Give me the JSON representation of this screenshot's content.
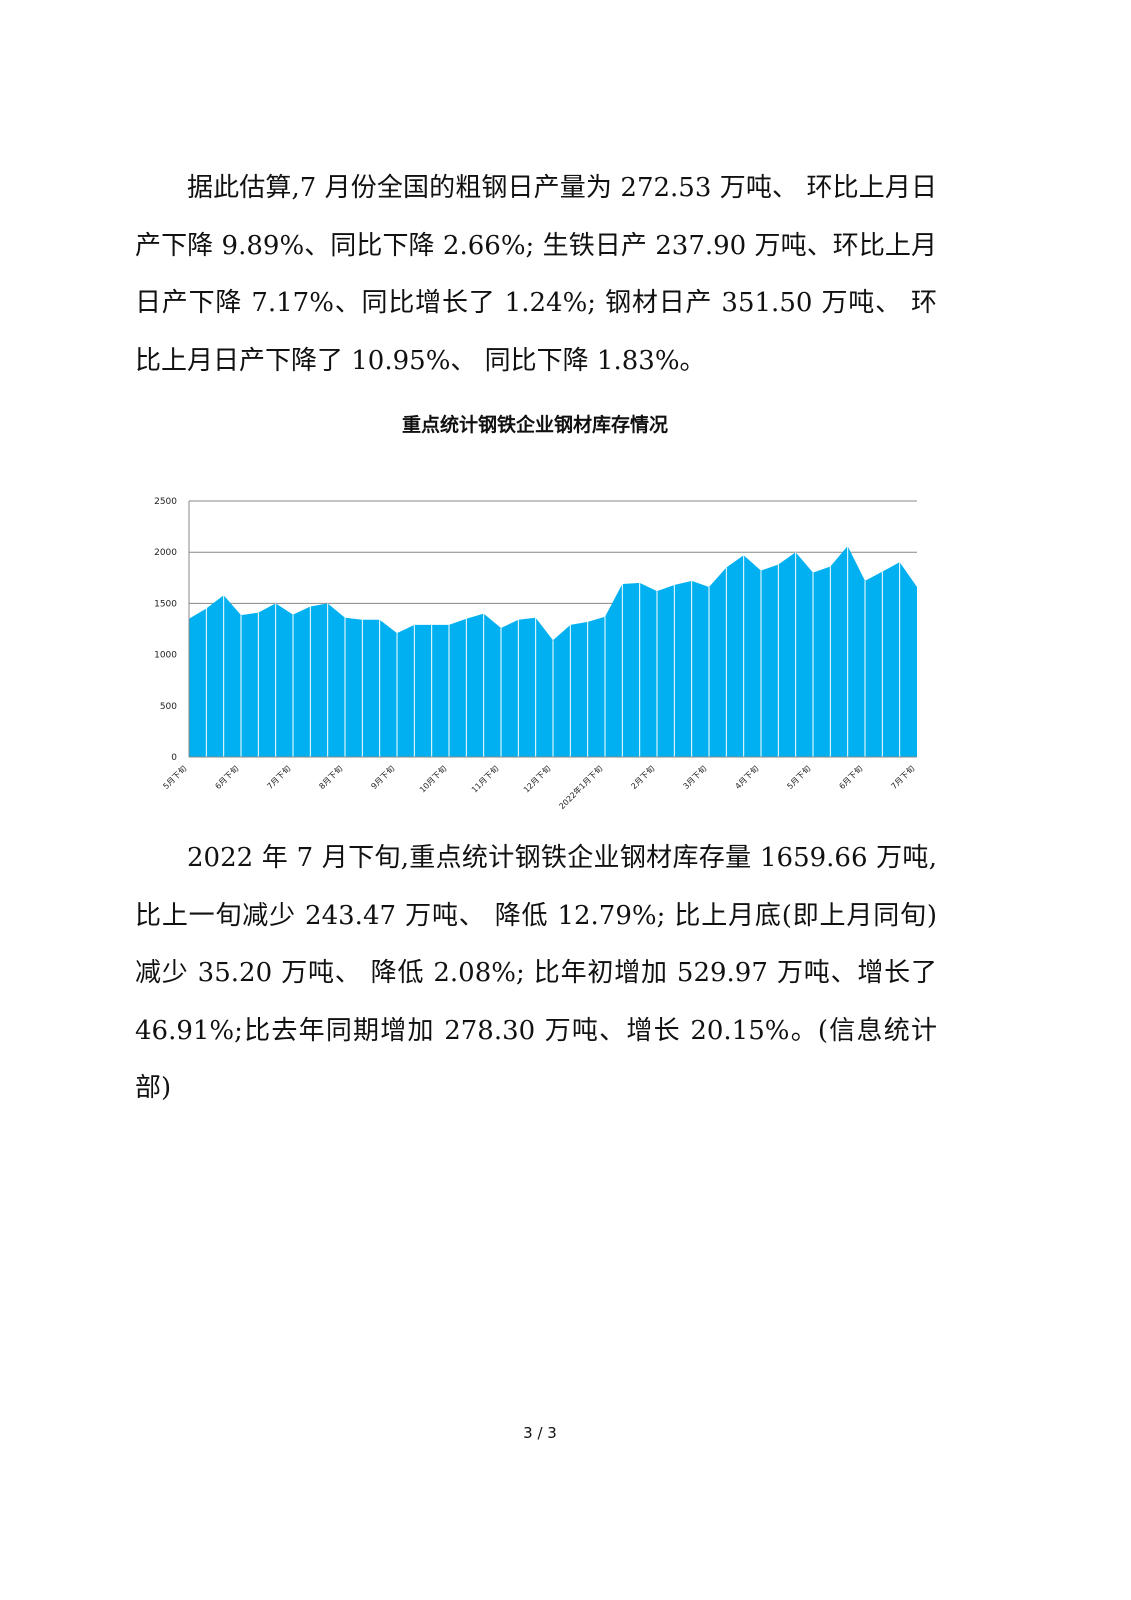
{
  "paragraphs": [
    "据此估算,7 月份全国的粗钢日产量为 272.53 万吨、 环比上月日产下降 9.89%、同比下降 2.66%;  生铁日产 237.90 万吨、环比上月日产下降 7.17%、同比增长了 1.24%;  钢材日产 351.50 万吨、 环比上月日产下降了 10.95%、 同比下降 1.83%。",
    "2022 年 7 月下旬,重点统计钢铁企业钢材库存量 1659.66 万吨,比上一旬减少 243.47 万吨、 降低 12.79%;  比上月底(即上月同旬)减少 35.20 万吨、 降低 2.08%;  比年初增加 529.97 万吨、增长了 46.91%;比去年同期增加 278.30 万吨、增长 20.15%。(信息统计部)"
  ],
  "chart_data": {
    "type": "area",
    "title": "重点统计钢铁企业钢材库存情况",
    "categories": [
      "5月下旬",
      null,
      null,
      "6月下旬",
      null,
      null,
      "7月下旬",
      null,
      null,
      "8月下旬",
      null,
      null,
      "9月下旬",
      null,
      null,
      "10月下旬",
      null,
      null,
      "11月下旬",
      null,
      null,
      "12月下旬",
      null,
      null,
      "2022年1月下旬",
      null,
      null,
      "2月下旬",
      null,
      null,
      "3月下旬",
      null,
      null,
      "4月下旬",
      null,
      null,
      "5月下旬",
      null,
      null,
      "6月下旬",
      null,
      null,
      "7月下旬"
    ],
    "values": [
      1350,
      1450,
      1580,
      1385,
      1410,
      1500,
      1390,
      1470,
      1500,
      1360,
      1340,
      1340,
      1210,
      1290,
      1290,
      1290,
      1350,
      1400,
      1260,
      1340,
      1360,
      1140,
      1290,
      1320,
      1370,
      1690,
      1700,
      1620,
      1680,
      1720,
      1660,
      1850,
      1970,
      1820,
      1880,
      2000,
      1800,
      1860,
      2060,
      1720,
      1810,
      1903,
      1659.66
    ],
    "color": "#00b0f0",
    "ylim": [
      0,
      2500
    ],
    "yticks": [
      0,
      500,
      1000,
      1500,
      2000,
      2500
    ],
    "grid": true
  },
  "page_number": "3 / 3"
}
